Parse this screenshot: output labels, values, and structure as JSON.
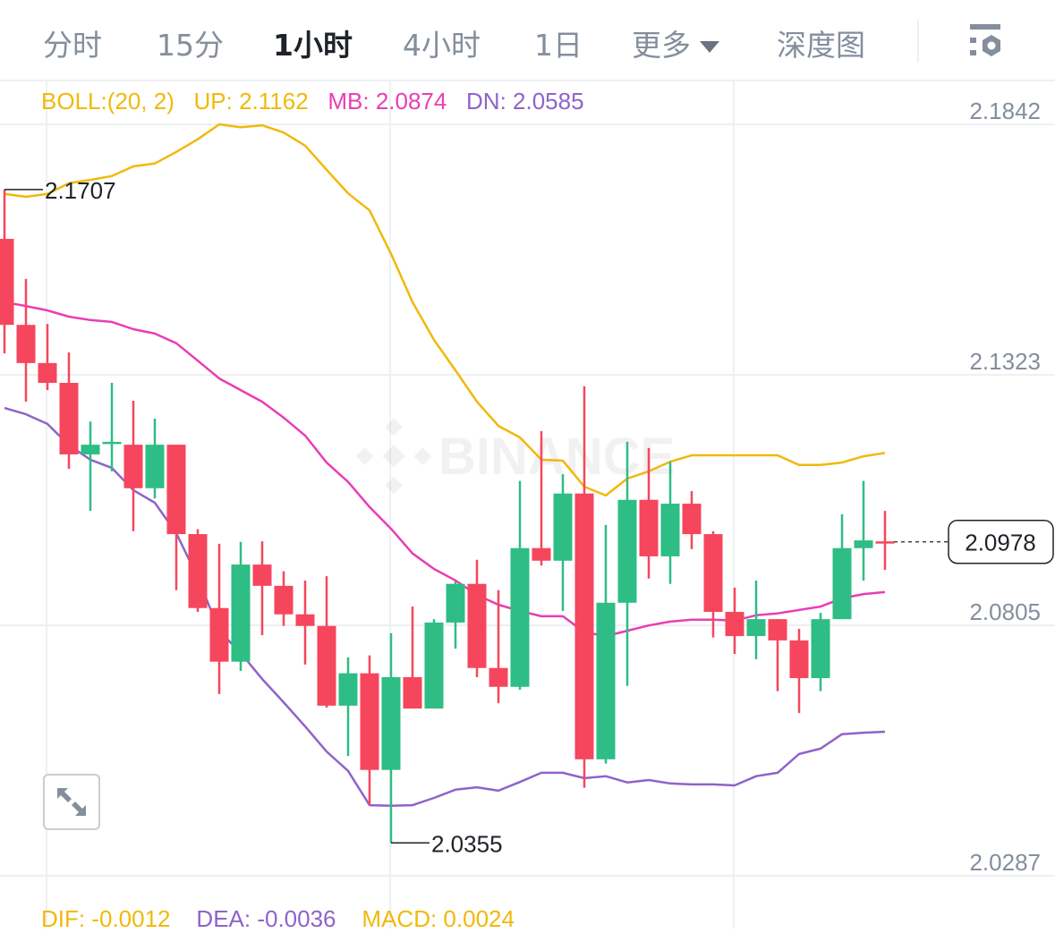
{
  "header": {
    "tabs": [
      {
        "label": "分时",
        "active": false
      },
      {
        "label": "15分",
        "active": false
      },
      {
        "label": "1小时",
        "active": true
      },
      {
        "label": "4小时",
        "active": false
      },
      {
        "label": "1日",
        "active": false
      },
      {
        "label": "更多",
        "active": false,
        "icon": "caret-down-icon"
      },
      {
        "label": "深度图",
        "active": false
      }
    ],
    "settings_icon": "indicator-settings-icon"
  },
  "boll_legend": {
    "name": "BOLL:(20, 2)",
    "up": "UP: 2.1162",
    "mb": "MB: 2.0874",
    "dn": "DN: 2.0585"
  },
  "macd_legend": {
    "dif": "DIF: -0.0012",
    "dea": "DEA: -0.0036",
    "macd": "MACD: 0.0024"
  },
  "watermark": "BINANCE",
  "expand_icon": "expand-arrows-icon",
  "colors": {
    "up": "#2EBD85",
    "down": "#F6465D",
    "boll_up": "#F0B90B",
    "boll_mb": "#E93DB5",
    "boll_dn": "#8F63C9",
    "grid": "#EEF0F2",
    "axis_text": "#848E9C"
  },
  "chart_data": {
    "type": "candlestick",
    "interval": "1小时",
    "ylim": [
      2.0287,
      2.1842
    ],
    "y_ticks": [
      "2.1842",
      "2.1323",
      "2.0805",
      "2.0287"
    ],
    "grid": true,
    "high_marker": "2.1707",
    "low_marker": "2.0355",
    "last_price": "2.0978",
    "candles": [
      [
        2.1605,
        2.1707,
        2.1368,
        2.1427
      ],
      [
        2.1427,
        2.1522,
        2.1268,
        2.1348
      ],
      [
        2.1348,
        2.1429,
        2.1292,
        2.1307
      ],
      [
        2.1307,
        2.137,
        2.1129,
        2.1159
      ],
      [
        2.1159,
        2.1227,
        2.1042,
        2.1179
      ],
      [
        2.1183,
        2.1307,
        2.1124,
        2.1185
      ],
      [
        2.1179,
        2.127,
        2.1,
        2.1089
      ],
      [
        2.1089,
        2.1233,
        2.1068,
        2.1179
      ],
      [
        2.1179,
        2.1179,
        2.0878,
        2.0994
      ],
      [
        2.0994,
        2.1004,
        2.0833,
        2.0841
      ],
      [
        2.0841,
        2.0974,
        2.0663,
        2.073
      ],
      [
        2.073,
        2.0978,
        2.0711,
        2.0931
      ],
      [
        2.0931,
        2.0979,
        2.0785,
        2.0887
      ],
      [
        2.0887,
        2.0917,
        2.0804,
        2.0828
      ],
      [
        2.0828,
        2.0898,
        2.0724,
        2.0804
      ],
      [
        2.0804,
        2.0907,
        2.0635,
        2.0639
      ],
      [
        2.0639,
        2.0739,
        2.0535,
        2.0706
      ],
      [
        2.0706,
        2.0743,
        2.0433,
        2.0506
      ],
      [
        2.0506,
        2.0789,
        2.0355,
        2.0698
      ],
      [
        2.0698,
        2.0844,
        2.0633,
        2.0633
      ],
      [
        2.0633,
        2.0818,
        2.0633,
        2.0811
      ],
      [
        2.0811,
        2.0896,
        2.0757,
        2.0891
      ],
      [
        2.0891,
        2.0941,
        2.0698,
        2.0717
      ],
      [
        2.0717,
        2.0878,
        2.0644,
        2.0678
      ],
      [
        2.0678,
        2.1104,
        2.0672,
        2.0965
      ],
      [
        2.0965,
        2.1207,
        2.0929,
        2.0939
      ],
      [
        2.0939,
        2.1118,
        2.0835,
        2.1078
      ],
      [
        2.1078,
        2.13,
        2.0469,
        2.0528
      ],
      [
        2.0528,
        2.1013,
        2.0519,
        2.0852
      ],
      [
        2.0852,
        2.1185,
        2.068,
        2.1065
      ],
      [
        2.1065,
        2.1172,
        2.0902,
        2.0948
      ],
      [
        2.0948,
        2.1144,
        2.0891,
        2.1057
      ],
      [
        2.1057,
        2.1083,
        2.0963,
        2.0994
      ],
      [
        2.0994,
        2.1,
        2.078,
        2.0833
      ],
      [
        2.0833,
        2.0883,
        2.0746,
        2.0783
      ],
      [
        2.0783,
        2.0898,
        2.0735,
        2.0818
      ],
      [
        2.0818,
        2.0818,
        2.0669,
        2.0774
      ],
      [
        2.0774,
        2.0798,
        2.0624,
        2.0696
      ],
      [
        2.0696,
        2.0831,
        2.0669,
        2.0818
      ],
      [
        2.0818,
        2.1035,
        2.0818,
        2.0965
      ],
      [
        2.0965,
        2.1104,
        2.0898,
        2.0981
      ],
      [
        2.0979,
        2.1042,
        2.092,
        2.0978
      ]
    ],
    "candle_format": [
      "open",
      "high",
      "low",
      "close"
    ],
    "series": [
      {
        "name": "UP",
        "values": [
          2.1698,
          2.1692,
          2.1698,
          2.172,
          2.1727,
          2.1735,
          2.1755,
          2.1761,
          2.1785,
          2.1811,
          2.1842,
          2.1836,
          2.184,
          2.1825,
          2.1798,
          2.1748,
          2.1699,
          2.1664,
          2.1574,
          2.1474,
          2.1396,
          2.1333,
          2.1268,
          2.1218,
          2.1194,
          2.1148,
          2.1146,
          2.1092,
          2.1074,
          2.1109,
          2.1124,
          2.1144,
          2.1157,
          2.1157,
          2.1157,
          2.1157,
          2.1157,
          2.1137,
          2.1137,
          2.1142,
          2.1155,
          2.1162
        ]
      },
      {
        "name": "MB",
        "values": [
          2.1474,
          2.1466,
          2.1457,
          2.1444,
          2.1437,
          2.1433,
          2.1418,
          2.1409,
          2.1389,
          2.1353,
          2.1316,
          2.1292,
          2.1268,
          2.1235,
          2.1198,
          2.1142,
          2.1102,
          2.105,
          2.1005,
          2.0954,
          2.0922,
          2.0898,
          2.0868,
          2.0848,
          2.0835,
          2.0824,
          2.0824,
          2.0791,
          2.0783,
          2.0794,
          2.0805,
          2.0813,
          2.0817,
          2.0817,
          2.0815,
          2.0826,
          2.083,
          2.0837,
          2.0844,
          2.0861,
          2.087,
          2.0874
        ]
      },
      {
        "name": "DN",
        "values": [
          2.1255,
          2.1242,
          2.1222,
          2.1178,
          2.1148,
          2.1131,
          2.1085,
          2.1059,
          2.0996,
          2.0904,
          2.0794,
          2.0748,
          2.0694,
          2.0646,
          2.0596,
          2.0544,
          2.0504,
          2.0433,
          2.0432,
          2.0433,
          2.0448,
          2.0465,
          2.047,
          2.0463,
          2.0481,
          2.05,
          2.05,
          2.0489,
          2.0493,
          2.048,
          2.0485,
          2.0478,
          2.0476,
          2.0476,
          2.0474,
          2.0493,
          2.05,
          2.0539,
          2.055,
          2.058,
          2.0583,
          2.0585
        ]
      }
    ]
  }
}
